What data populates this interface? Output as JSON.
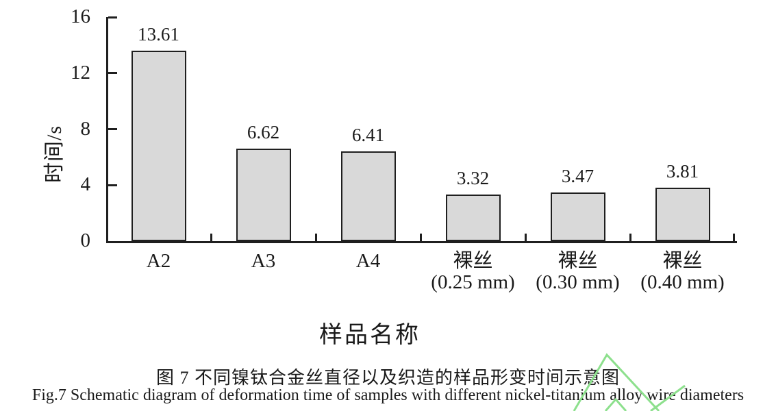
{
  "figure": {
    "caption_zh": "图 7 不同镍钛合金丝直径以及织造的样品形变时间示意图",
    "caption_en": "Fig.7 Schematic diagram of deformation time of samples with different nickel-titanium alloy wire diameters"
  },
  "chart_data": {
    "type": "bar",
    "categories": [
      [
        "A2"
      ],
      [
        "A3"
      ],
      [
        "A4"
      ],
      [
        "裸丝",
        "(0.25 mm)"
      ],
      [
        "裸丝",
        "(0.30 mm)"
      ],
      [
        "裸丝",
        "(0.40 mm)"
      ]
    ],
    "values": [
      13.61,
      6.62,
      6.41,
      3.32,
      3.47,
      3.81
    ],
    "data_labels": [
      "13.61",
      "6.62",
      "6.41",
      "3.32",
      "3.47",
      "3.81"
    ],
    "title": "",
    "xlabel": "样品名称",
    "ylabel": "时间/s",
    "ylim": [
      0,
      16
    ],
    "yticks": [
      0,
      4,
      8,
      12,
      16
    ],
    "grid": "off",
    "legend": "none",
    "bar_fill": "#d9d9d9",
    "bar_border": "#1f1f1f",
    "axis_color": "#1f1f1f"
  },
  "watermark": {
    "name": "green-chevron-watermark",
    "color": "#8de08d"
  }
}
